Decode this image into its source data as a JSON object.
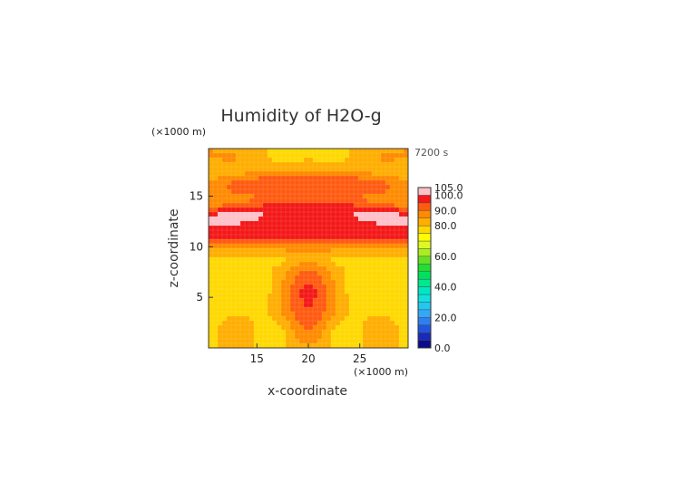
{
  "chart_data": {
    "type": "heatmap",
    "title": "Humidity of H2O-g",
    "time_label": "7200 s",
    "xlabel": "x-coordinate",
    "ylabel": "z-coordinate",
    "x_unit": "(×1000 m)",
    "y_unit": "(×1000 m)",
    "xlim": [
      10.3,
      29.7
    ],
    "ylim": [
      0,
      19.7
    ],
    "x_ticks": [
      15,
      20,
      25
    ],
    "y_ticks": [
      5,
      10,
      15
    ],
    "grid": true,
    "colorbar": {
      "levels": [
        0,
        5,
        10,
        15,
        20,
        25,
        30,
        35,
        40,
        45,
        50,
        55,
        60,
        65,
        70,
        75,
        80,
        85,
        90,
        95,
        100,
        105
      ],
      "colors": [
        "#0a0a8c",
        "#1a2ab8",
        "#2255dd",
        "#2f7ff0",
        "#33a8f8",
        "#22c8f0",
        "#10e0e0",
        "#00e8c0",
        "#00e890",
        "#00e060",
        "#22dd33",
        "#66e022",
        "#a8ee22",
        "#ddf822",
        "#ffff00",
        "#ffd800",
        "#ffae00",
        "#ff8a00",
        "#ff5a10",
        "#f41818",
        "#ffc0c8"
      ],
      "tick_labels": [
        "0.0",
        "20.0",
        "40.0",
        "60.0",
        "80.0",
        "90.0",
        "100.0",
        "105.0"
      ],
      "tick_values": [
        0,
        20,
        40,
        60,
        80,
        90,
        100,
        105
      ]
    },
    "field_description": "values 75-100 relative humidity; bands of red (95-100) and pink (>100) aloft and in central column, yellow (75-80) near surface and mid-levels"
  }
}
